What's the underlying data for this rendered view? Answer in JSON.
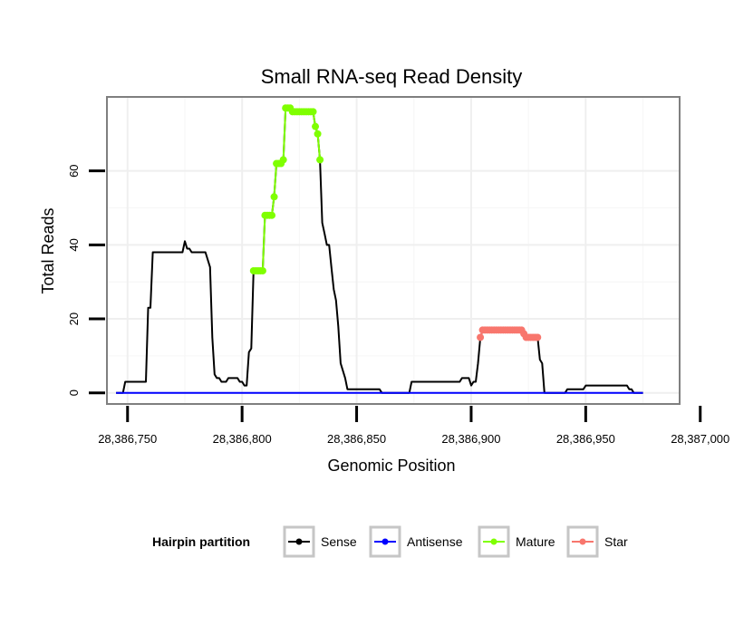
{
  "chart_data": {
    "type": "line",
    "title": "Small RNA-seq Read Density",
    "xlabel": "Genomic Position",
    "ylabel": "Total Reads",
    "xlim": [
      28386741,
      28386991
    ],
    "ylim": [
      -3,
      80
    ],
    "x_ticks": [
      28386750,
      28386800,
      28386850,
      28386900,
      28386950,
      28387000
    ],
    "x_tick_labels": [
      "28,386,750",
      "28,386,800",
      "28,386,850",
      "28,386,900",
      "28,386,950",
      "28,387,000"
    ],
    "y_ticks": [
      0,
      20,
      40,
      60
    ],
    "y_tick_labels": [
      "0",
      "20",
      "40",
      "60"
    ],
    "grid": true,
    "legend_placement": "bottom",
    "legend_title": "Hairpin partition",
    "series": [
      {
        "name": "Sense",
        "color": "#000000",
        "points": [
          [
            28386745,
            0
          ],
          [
            28386748,
            0
          ],
          [
            28386749,
            3
          ],
          [
            28386758,
            3
          ],
          [
            28386759,
            23
          ],
          [
            28386760,
            23
          ],
          [
            28386761,
            38
          ],
          [
            28386774,
            38
          ],
          [
            28386775,
            41
          ],
          [
            28386776,
            39
          ],
          [
            28386777,
            39
          ],
          [
            28386778,
            38
          ],
          [
            28386784,
            38
          ],
          [
            28386786,
            34
          ],
          [
            28386787,
            15
          ],
          [
            28386788,
            5
          ],
          [
            28386789,
            4
          ],
          [
            28386790,
            4
          ],
          [
            28386791,
            3
          ],
          [
            28386793,
            3
          ],
          [
            28386794,
            4
          ],
          [
            28386798,
            4
          ],
          [
            28386799,
            3
          ],
          [
            28386800,
            3
          ],
          [
            28386801,
            2
          ],
          [
            28386802,
            2
          ],
          [
            28386803,
            11
          ],
          [
            28386804,
            12
          ],
          [
            28386805,
            33
          ],
          [
            28386809,
            33
          ],
          [
            28386810,
            48
          ],
          [
            28386813,
            48
          ],
          [
            28386814,
            53
          ],
          [
            28386815,
            62
          ],
          [
            28386817,
            62
          ],
          [
            28386818,
            63
          ],
          [
            28386819,
            77
          ],
          [
            28386821,
            77
          ],
          [
            28386822,
            76
          ],
          [
            28386831,
            76
          ],
          [
            28386832,
            72
          ],
          [
            28386833,
            70
          ],
          [
            28386834,
            63
          ],
          [
            28386835,
            46
          ],
          [
            28386836,
            43
          ],
          [
            28386837,
            40
          ],
          [
            28386838,
            40
          ],
          [
            28386839,
            34
          ],
          [
            28386840,
            28
          ],
          [
            28386841,
            25
          ],
          [
            28386842,
            18
          ],
          [
            28386843,
            8
          ],
          [
            28386845,
            4
          ],
          [
            28386846,
            1
          ],
          [
            28386860,
            1
          ],
          [
            28386861,
            0
          ],
          [
            28386873,
            0
          ],
          [
            28386874,
            3
          ],
          [
            28386895,
            3
          ],
          [
            28386896,
            4
          ],
          [
            28386899,
            4
          ],
          [
            28386900,
            2
          ],
          [
            28386901,
            3
          ],
          [
            28386902,
            3
          ],
          [
            28386903,
            8
          ],
          [
            28386904,
            15
          ],
          [
            28386905,
            17
          ],
          [
            28386922,
            17
          ],
          [
            28386923,
            16
          ],
          [
            28386924,
            15
          ],
          [
            28386929,
            15
          ],
          [
            28386930,
            9
          ],
          [
            28386931,
            8
          ],
          [
            28386932,
            0
          ],
          [
            28386941,
            0
          ],
          [
            28386942,
            1
          ],
          [
            28386949,
            1
          ],
          [
            28386950,
            2
          ],
          [
            28386968,
            2
          ],
          [
            28386969,
            1
          ],
          [
            28386970,
            1
          ],
          [
            28386971,
            0
          ],
          [
            28386975,
            0
          ]
        ]
      },
      {
        "name": "Antisense",
        "color": "#0000ff",
        "points": [
          [
            28386745,
            0
          ],
          [
            28386975,
            0
          ]
        ]
      },
      {
        "name": "Mature",
        "color": "#7fff00",
        "points": [
          [
            28386805,
            33
          ],
          [
            28386806,
            33
          ],
          [
            28386807,
            33
          ],
          [
            28386808,
            33
          ],
          [
            28386809,
            33
          ],
          [
            28386810,
            48
          ],
          [
            28386811,
            48
          ],
          [
            28386812,
            48
          ],
          [
            28386813,
            48
          ],
          [
            28386814,
            53
          ],
          [
            28386815,
            62
          ],
          [
            28386816,
            62
          ],
          [
            28386817,
            62
          ],
          [
            28386818,
            63
          ],
          [
            28386819,
            77
          ],
          [
            28386820,
            77
          ],
          [
            28386821,
            77
          ],
          [
            28386822,
            76
          ],
          [
            28386823,
            76
          ],
          [
            28386824,
            76
          ],
          [
            28386825,
            76
          ],
          [
            28386826,
            76
          ],
          [
            28386827,
            76
          ],
          [
            28386828,
            76
          ],
          [
            28386829,
            76
          ],
          [
            28386830,
            76
          ],
          [
            28386831,
            76
          ],
          [
            28386832,
            72
          ],
          [
            28386833,
            70
          ],
          [
            28386834,
            63
          ]
        ]
      },
      {
        "name": "Star",
        "color": "#f8766d",
        "points": [
          [
            28386904,
            15
          ],
          [
            28386905,
            17
          ],
          [
            28386906,
            17
          ],
          [
            28386907,
            17
          ],
          [
            28386908,
            17
          ],
          [
            28386909,
            17
          ],
          [
            28386910,
            17
          ],
          [
            28386911,
            17
          ],
          [
            28386912,
            17
          ],
          [
            28386913,
            17
          ],
          [
            28386914,
            17
          ],
          [
            28386915,
            17
          ],
          [
            28386916,
            17
          ],
          [
            28386917,
            17
          ],
          [
            28386918,
            17
          ],
          [
            28386919,
            17
          ],
          [
            28386920,
            17
          ],
          [
            28386921,
            17
          ],
          [
            28386922,
            17
          ],
          [
            28386923,
            16
          ],
          [
            28386924,
            15
          ],
          [
            28386925,
            15
          ],
          [
            28386926,
            15
          ],
          [
            28386927,
            15
          ],
          [
            28386928,
            15
          ],
          [
            28386929,
            15
          ]
        ]
      }
    ]
  }
}
